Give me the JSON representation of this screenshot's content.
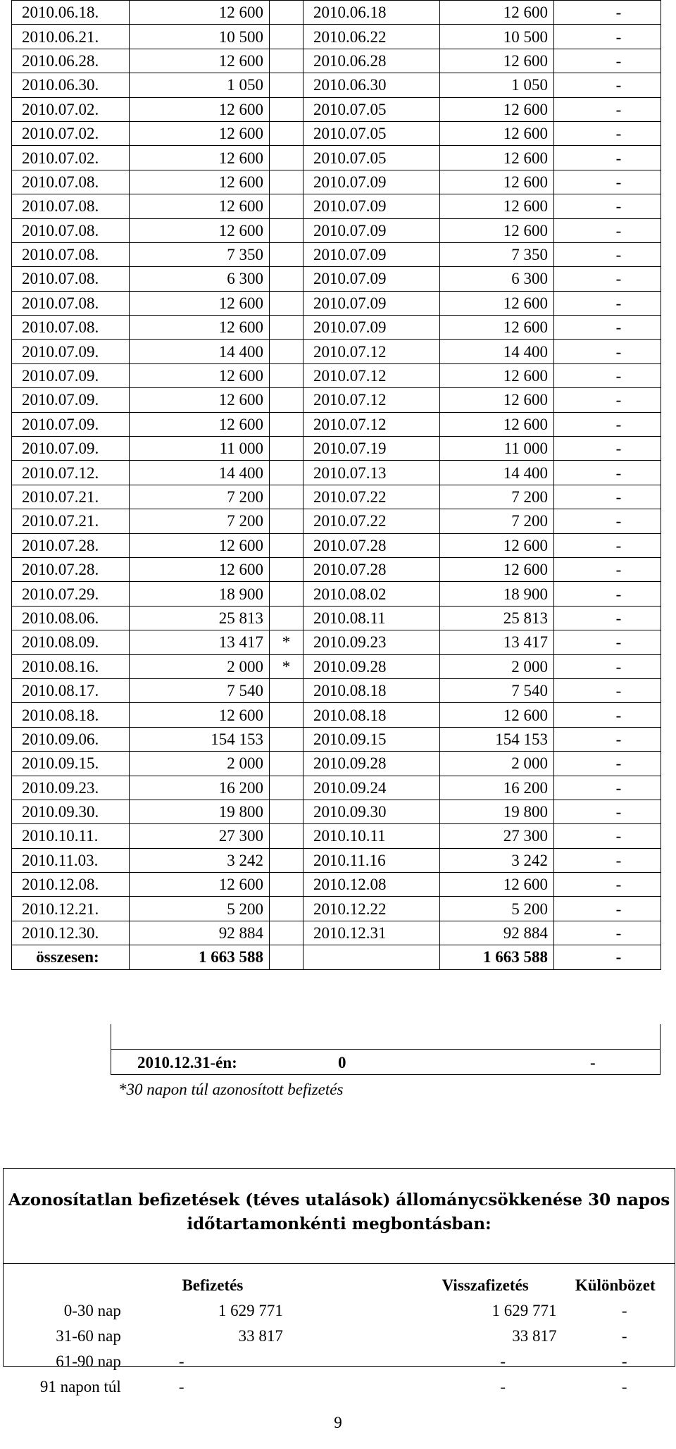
{
  "rows": [
    [
      "2010.06.18.",
      "12 600",
      "",
      "2010.06.18",
      "12 600",
      "-"
    ],
    [
      "2010.06.21.",
      "10 500",
      "",
      "2010.06.22",
      "10 500",
      "-"
    ],
    [
      "2010.06.28.",
      "12 600",
      "",
      "2010.06.28",
      "12 600",
      "-"
    ],
    [
      "2010.06.30.",
      "1 050",
      "",
      "2010.06.30",
      "1 050",
      "-"
    ],
    [
      "2010.07.02.",
      "12 600",
      "",
      "2010.07.05",
      "12 600",
      "-"
    ],
    [
      "2010.07.02.",
      "12 600",
      "",
      "2010.07.05",
      "12 600",
      "-"
    ],
    [
      "2010.07.02.",
      "12 600",
      "",
      "2010.07.05",
      "12 600",
      "-"
    ],
    [
      "2010.07.08.",
      "12 600",
      "",
      "2010.07.09",
      "12 600",
      "-"
    ],
    [
      "2010.07.08.",
      "12 600",
      "",
      "2010.07.09",
      "12 600",
      "-"
    ],
    [
      "2010.07.08.",
      "12 600",
      "",
      "2010.07.09",
      "12 600",
      "-"
    ],
    [
      "2010.07.08.",
      "7 350",
      "",
      "2010.07.09",
      "7 350",
      "-"
    ],
    [
      "2010.07.08.",
      "6 300",
      "",
      "2010.07.09",
      "6 300",
      "-"
    ],
    [
      "2010.07.08.",
      "12 600",
      "",
      "2010.07.09",
      "12 600",
      "-"
    ],
    [
      "2010.07.08.",
      "12 600",
      "",
      "2010.07.09",
      "12 600",
      "-"
    ],
    [
      "2010.07.09.",
      "14 400",
      "",
      "2010.07.12",
      "14 400",
      "-"
    ],
    [
      "2010.07.09.",
      "12 600",
      "",
      "2010.07.12",
      "12 600",
      "-"
    ],
    [
      "2010.07.09.",
      "12 600",
      "",
      "2010.07.12",
      "12 600",
      "-"
    ],
    [
      "2010.07.09.",
      "12 600",
      "",
      "2010.07.12",
      "12 600",
      "-"
    ],
    [
      "2010.07.09.",
      "11 000",
      "",
      "2010.07.19",
      "11 000",
      "-"
    ],
    [
      "2010.07.12.",
      "14 400",
      "",
      "2010.07.13",
      "14 400",
      "-"
    ],
    [
      "2010.07.21.",
      "7 200",
      "",
      "2010.07.22",
      "7 200",
      "-"
    ],
    [
      "2010.07.21.",
      "7 200",
      "",
      "2010.07.22",
      "7 200",
      "-"
    ],
    [
      "2010.07.28.",
      "12 600",
      "",
      "2010.07.28",
      "12 600",
      "-"
    ],
    [
      "2010.07.28.",
      "12 600",
      "",
      "2010.07.28",
      "12 600",
      "-"
    ],
    [
      "2010.07.29.",
      "18 900",
      "",
      "2010.08.02",
      "18 900",
      "-"
    ],
    [
      "2010.08.06.",
      "25 813",
      "",
      "2010.08.11",
      "25 813",
      "-"
    ],
    [
      "2010.08.09.",
      "13 417",
      "*",
      "2010.09.23",
      "13 417",
      "-"
    ],
    [
      "2010.08.16.",
      "2 000",
      "*",
      "2010.09.28",
      "2 000",
      "-"
    ],
    [
      "2010.08.17.",
      "7 540",
      "",
      "2010.08.18",
      "7 540",
      "-"
    ],
    [
      "2010.08.18.",
      "12 600",
      "",
      "2010.08.18",
      "12 600",
      "-"
    ],
    [
      "2010.09.06.",
      "154 153",
      "",
      "2010.09.15",
      "154 153",
      "-"
    ],
    [
      "2010.09.15.",
      "2 000",
      "",
      "2010.09.28",
      "2 000",
      "-"
    ],
    [
      "2010.09.23.",
      "16 200",
      "",
      "2010.09.24",
      "16 200",
      "-"
    ],
    [
      "2010.09.30.",
      "19 800",
      "",
      "2010.09.30",
      "19 800",
      "-"
    ],
    [
      "2010.10.11.",
      "27 300",
      "",
      "2010.10.11",
      "27 300",
      "-"
    ],
    [
      "2010.11.03.",
      "3 242",
      "",
      "2010.11.16",
      "3 242",
      "-"
    ],
    [
      "2010.12.08.",
      "12 600",
      "",
      "2010.12.08",
      "12 600",
      "-"
    ],
    [
      "2010.12.21.",
      "5 200",
      "",
      "2010.12.22",
      "5 200",
      "-"
    ],
    [
      "2010.12.30.",
      "92 884",
      "",
      "2010.12.31",
      "92 884",
      "-"
    ]
  ],
  "total": {
    "label": "összesen:",
    "befizetes": "1 663 588",
    "visszafizetes": "1 663 588",
    "kulonbozet": "-"
  },
  "year_end": {
    "label": "2010.12.31-én:",
    "value": "0",
    "dash": "-"
  },
  "footnote": "*30 napon túl azonosított befizetés",
  "summary": {
    "title_line1": "Azonosítatlan befizetések (téves utalások) állománycsökkenése 30 napos",
    "title_line2": "időtartamonkénti megbontásban:",
    "headers": [
      "Befizetés",
      "Visszafizetés",
      "Különbözet"
    ],
    "rows": [
      [
        "0-30 nap",
        "1 629 771",
        "1 629 771",
        "-"
      ],
      [
        "31-60 nap",
        "33 817",
        "33 817",
        "-"
      ],
      [
        "61-90 nap",
        "-",
        "-",
        "-"
      ],
      [
        "91 napon túl",
        "-",
        "-",
        "-"
      ]
    ]
  },
  "page_number": "9"
}
